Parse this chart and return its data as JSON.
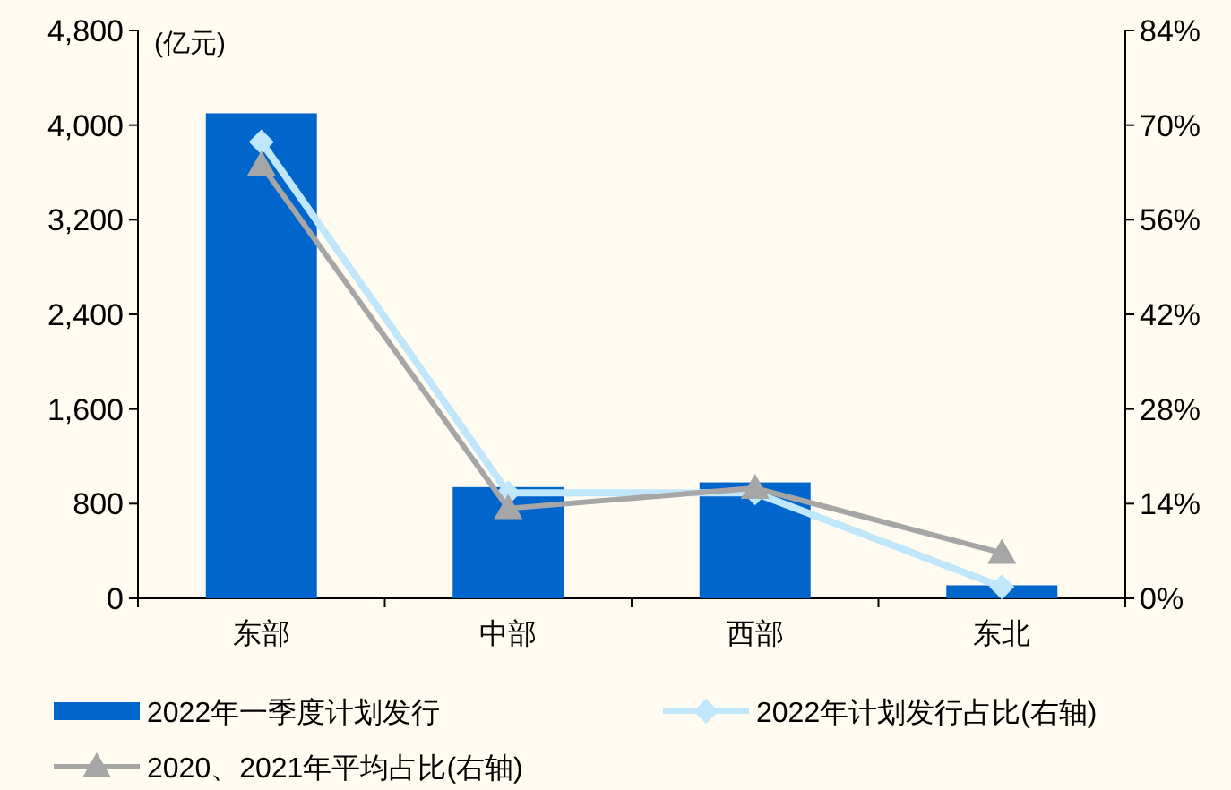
{
  "chart_data": {
    "type": "bar",
    "ylabel": "(亿元)",
    "categories": [
      "东部",
      "中部",
      "西部",
      "东北"
    ],
    "series": [
      {
        "name": "2022年一季度计划发行",
        "color": "#0066cc",
        "values": [
          4100,
          940,
          980,
          110
        ]
      },
      {
        "name": "2022年计划发行占比(右轴)",
        "type": "line",
        "axis": "y2",
        "color": "#bfe6fb",
        "marker": "diamond",
        "values": [
          67.5,
          15.6,
          15.6,
          1.7
        ]
      },
      {
        "name": "2020、2021年平均占比(右轴)",
        "type": "line",
        "axis": "y2",
        "color": "#a6a6a6",
        "marker": "triangle",
        "values": [
          64.1,
          13.3,
          16.3,
          6.7
        ]
      }
    ],
    "ylim": [
      0,
      4800
    ],
    "yticks": [
      0,
      {
        "value": 800,
        "label": "800"
      },
      {
        "value": 1600,
        "label": "1,600"
      },
      {
        "value": 2400,
        "label": "2,400"
      },
      {
        "value": 3200,
        "label": "3,200"
      },
      {
        "value": 4000,
        "label": "4,000"
      },
      {
        "value": 4800,
        "label": "4,800"
      }
    ],
    "y2lim": [
      0,
      84
    ],
    "y2ticks": [
      {
        "value": 0,
        "label": "0%"
      },
      {
        "value": 14,
        "label": "14%"
      },
      {
        "value": 28,
        "label": "28%"
      },
      {
        "value": 42,
        "label": "42%"
      },
      {
        "value": 56,
        "label": "56%"
      },
      {
        "value": 70,
        "label": "70%"
      },
      {
        "value": 84,
        "label": "84%"
      }
    ],
    "grid": false,
    "legend": "bottom"
  }
}
